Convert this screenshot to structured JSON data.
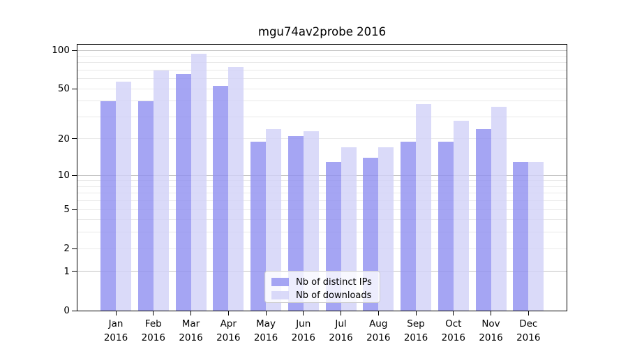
{
  "title": "mgu74av2probe 2016",
  "chart_data": {
    "type": "bar",
    "title": "mgu74av2probe 2016",
    "yscale": "symlog",
    "ylim": [
      0,
      112
    ],
    "yticks": [
      0,
      1,
      2,
      5,
      10,
      20,
      50,
      100
    ],
    "grid": true,
    "legend_position": "lower center",
    "categories": [
      "Jan",
      "Feb",
      "Mar",
      "Apr",
      "May",
      "Jun",
      "Jul",
      "Aug",
      "Sep",
      "Oct",
      "Nov",
      "Dec"
    ],
    "category_year": "2016",
    "series": [
      {
        "name": "Nb of distinct IPs",
        "color": "#8f8ff0",
        "opacity": 0.8,
        "values": [
          40,
          40,
          65,
          53,
          19,
          21,
          13,
          14,
          19,
          19,
          24,
          13
        ]
      },
      {
        "name": "Nb of downloads",
        "color": "#d1d1f7",
        "opacity": 0.8,
        "values": [
          57,
          70,
          94,
          74,
          24,
          23,
          17,
          17,
          38,
          28,
          36,
          13
        ]
      }
    ]
  },
  "colors": {
    "grid_major": "#c3c3c3",
    "grid_minor": "#e9e9e9",
    "spine": "#000000",
    "text": "#000000",
    "legend_border": "#cccccc",
    "legend_bg": "rgba(255,255,255,0.8)"
  }
}
